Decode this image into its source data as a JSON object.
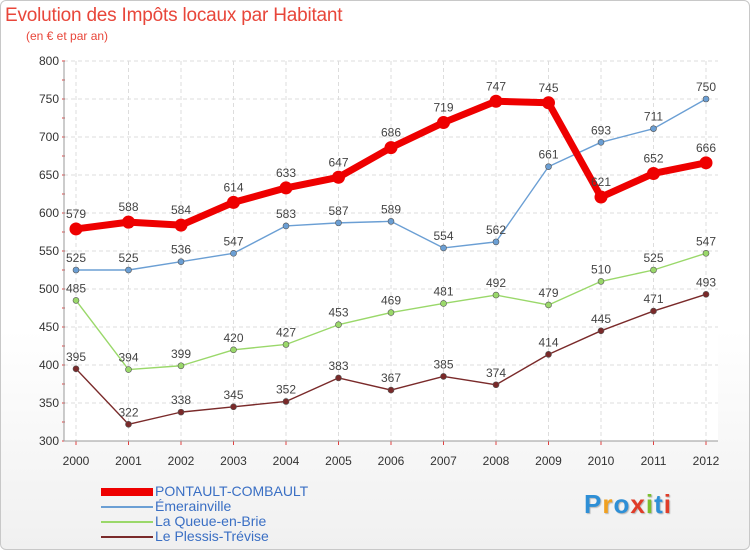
{
  "header": {
    "title": "Evolution des Impôts locaux par Habitant",
    "subtitle": "(en € et par an)"
  },
  "logo": {
    "text": "Proxiti",
    "colors": [
      "#2e8fd6",
      "#f0a020",
      "#2e8fd6",
      "#e03c28",
      "#7cbf2e",
      "#2e8fd6",
      "#e03c28"
    ]
  },
  "chart_data": {
    "type": "line",
    "x": [
      "2000",
      "2001",
      "2002",
      "2003",
      "2004",
      "2005",
      "2006",
      "2007",
      "2008",
      "2009",
      "2010",
      "2011",
      "2012"
    ],
    "ylim": [
      300,
      800
    ],
    "yticks": [
      300,
      350,
      400,
      450,
      500,
      550,
      600,
      650,
      700,
      750,
      800
    ],
    "grid": true,
    "legend_position": "bottom-left",
    "series": [
      {
        "name": "PONTAULT-COMBAULT",
        "color": "#ee0000",
        "width": 7,
        "values": [
          579,
          588,
          584,
          614,
          633,
          647,
          686,
          719,
          747,
          745,
          621,
          652,
          666
        ]
      },
      {
        "name": "Émerainville",
        "color": "#6b9fd4",
        "width": 1.4,
        "values": [
          525,
          525,
          536,
          547,
          583,
          587,
          589,
          554,
          562,
          661,
          693,
          711,
          750
        ]
      },
      {
        "name": "La Queue-en-Brie",
        "color": "#9ad86a",
        "width": 1.4,
        "values": [
          485,
          394,
          399,
          420,
          427,
          453,
          469,
          481,
          492,
          479,
          510,
          525,
          547
        ]
      },
      {
        "name": "Le Plessis-Trévise",
        "color": "#7a2a2a",
        "width": 1.4,
        "values": [
          395,
          322,
          338,
          345,
          352,
          383,
          367,
          385,
          374,
          414,
          445,
          471,
          493
        ]
      }
    ]
  }
}
